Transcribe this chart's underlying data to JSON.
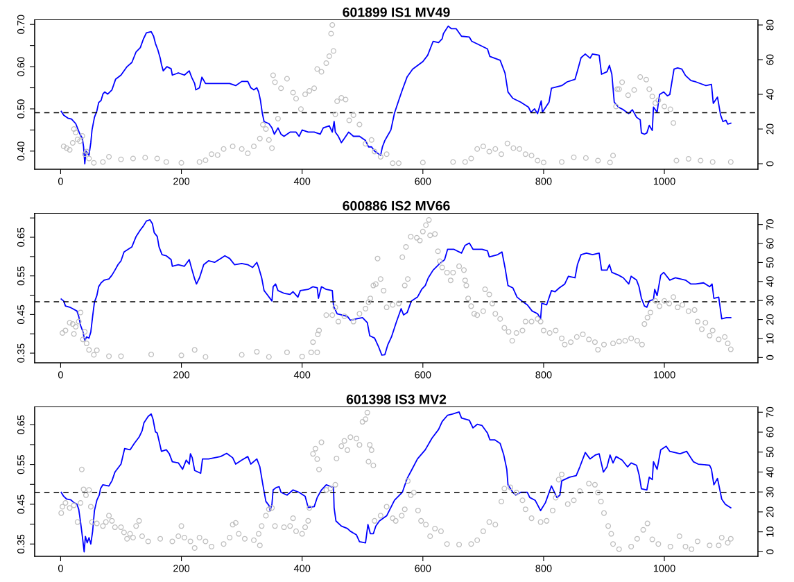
{
  "chart_data": [
    {
      "type": "line",
      "title": "601899 IS1 MV49",
      "grid": false,
      "xlim": [
        -43,
        1155
      ],
      "xticks": [
        0,
        200,
        400,
        600,
        800,
        1000
      ],
      "ylim": [
        0.357,
        0.711
      ],
      "yticks": [
        {
          "value": 0.4,
          "label": "0.40"
        },
        {
          "value": 0.45,
          "label": null
        },
        {
          "value": 0.5,
          "label": "0.50"
        },
        {
          "value": 0.55,
          "label": null
        },
        {
          "value": 0.6,
          "label": "0.60"
        },
        {
          "value": 0.65,
          "label": null
        },
        {
          "value": 0.7,
          "label": "0.70"
        }
      ],
      "y2lim": [
        -3.2,
        83
      ],
      "y2ticks": [
        0,
        20,
        40,
        60,
        80
      ],
      "ref_lines": [
        {
          "axis": "y",
          "value": 0.491,
          "color": "#000000",
          "line_style": "dashed"
        }
      ],
      "series": [
        {
          "type": "scatter",
          "axis": "y2",
          "marker": "circle",
          "color": "#bebebe",
          "x": [
            5,
            10,
            15,
            20,
            22,
            25,
            28,
            32,
            36,
            40,
            43,
            47,
            55,
            70,
            80,
            100,
            120,
            140,
            160,
            175,
            200,
            230,
            240,
            250,
            260,
            270,
            285,
            300,
            310,
            320,
            330,
            335,
            340,
            345,
            350,
            352,
            355,
            360,
            365,
            375,
            385,
            390,
            398,
            405,
            412,
            420,
            425,
            432,
            440,
            445,
            448,
            450,
            452,
            455,
            458,
            465,
            472,
            478,
            485,
            495,
            505,
            515,
            520,
            530,
            540,
            550,
            560,
            600,
            650,
            670,
            680,
            690,
            700,
            710,
            720,
            730,
            740,
            750,
            760,
            770,
            780,
            790,
            800,
            830,
            850,
            870,
            890,
            910,
            915,
            920,
            922,
            925,
            930,
            940,
            950,
            960,
            970,
            975,
            980,
            985,
            990,
            1000,
            1010,
            1015,
            1020,
            1040,
            1060,
            1080,
            1110
          ],
          "values": [
            10,
            9,
            8,
            12,
            20,
            18,
            14,
            13,
            16,
            5.5,
            7,
            3,
            0.5,
            1,
            4,
            2.5,
            3,
            3.5,
            3,
            1,
            0.5,
            1,
            2,
            5.5,
            5,
            8.5,
            10,
            8.5,
            6,
            10,
            14.5,
            22.5,
            20,
            13.7,
            9,
            51,
            47,
            26,
            43.5,
            49,
            41,
            37.5,
            31.5,
            40,
            42,
            43.5,
            54.6,
            53,
            58,
            62,
            75,
            80,
            65,
            28.5,
            36,
            38,
            37,
            25,
            28,
            22.6,
            11.5,
            13.7,
            7,
            4,
            5.5,
            0.3,
            0.3,
            0.7,
            1,
            1,
            3,
            8.5,
            10,
            7,
            8.5,
            5.5,
            11.7,
            9,
            8.5,
            5.5,
            4.7,
            1.8,
            0.7,
            1,
            3.7,
            3.3,
            1.8,
            0.7,
            4.7,
            33,
            43,
            43,
            47,
            39.5,
            42.5,
            50,
            48.5,
            43,
            38.8,
            35,
            36.6,
            33,
            31.4,
            23.5,
            1.8,
            2.8,
            1.8,
            1,
            1
          ]
        },
        {
          "color": "#0000ff",
          "line_style": "solid",
          "x": [
            1,
            5,
            12,
            18,
            25,
            32,
            36,
            38,
            40,
            42,
            47,
            50,
            52,
            56,
            60,
            63,
            67,
            70,
            73,
            78,
            85,
            91,
            100,
            110,
            118,
            125,
            132,
            137,
            142,
            150,
            154,
            157,
            161,
            165,
            167,
            170,
            176,
            183,
            185,
            195,
            205,
            213,
            217,
            222,
            224,
            230,
            234,
            240,
            260,
            280,
            290,
            300,
            310,
            315,
            320,
            325,
            328,
            331,
            334,
            337,
            345,
            350,
            354,
            360,
            365,
            370,
            380,
            390,
            395,
            400,
            410,
            420,
            430,
            435,
            445,
            450,
            453,
            455,
            460,
            465,
            470,
            477,
            485,
            495,
            505,
            510,
            515,
            520,
            525,
            530,
            533,
            537,
            541,
            547,
            553,
            560,
            566,
            574,
            583,
            600,
            608,
            617,
            626,
            632,
            634,
            642,
            647,
            655,
            664,
            677,
            681,
            690,
            707,
            711,
            728,
            736,
            741,
            749,
            762,
            775,
            779,
            785,
            790,
            796,
            798,
            809,
            813,
            830,
            839,
            852,
            856,
            862,
            869,
            877,
            881,
            892,
            896,
            905,
            909,
            913,
            917,
            924,
            932,
            941,
            947,
            954,
            960,
            962,
            967,
            971,
            975,
            980,
            982,
            988,
            992,
            999,
            1005,
            1009,
            1016,
            1022,
            1029,
            1035,
            1044,
            1052,
            1069,
            1078,
            1081,
            1088,
            1093,
            1097,
            1102,
            1105,
            1110
          ],
          "values": [
            0.494,
            0.485,
            0.478,
            0.476,
            0.465,
            0.44,
            0.43,
            0.41,
            0.37,
            0.4,
            0.39,
            0.42,
            0.45,
            0.48,
            0.495,
            0.515,
            0.52,
            0.535,
            0.54,
            0.535,
            0.545,
            0.57,
            0.58,
            0.6,
            0.61,
            0.635,
            0.645,
            0.665,
            0.68,
            0.683,
            0.672,
            0.655,
            0.64,
            0.62,
            0.605,
            0.59,
            0.6,
            0.595,
            0.58,
            0.585,
            0.58,
            0.59,
            0.575,
            0.56,
            0.545,
            0.55,
            0.575,
            0.56,
            0.56,
            0.56,
            0.555,
            0.565,
            0.565,
            0.55,
            0.545,
            0.55,
            0.54,
            0.52,
            0.49,
            0.47,
            0.465,
            0.455,
            0.44,
            0.455,
            0.44,
            0.435,
            0.445,
            0.445,
            0.435,
            0.45,
            0.445,
            0.445,
            0.44,
            0.455,
            0.46,
            0.445,
            0.47,
            0.445,
            0.435,
            0.42,
            0.43,
            0.445,
            0.435,
            0.435,
            0.425,
            0.41,
            0.41,
            0.4,
            0.395,
            0.39,
            0.41,
            0.425,
            0.435,
            0.45,
            0.49,
            0.52,
            0.545,
            0.576,
            0.594,
            0.612,
            0.627,
            0.66,
            0.657,
            0.666,
            0.678,
            0.696,
            0.69,
            0.69,
            0.672,
            0.67,
            0.66,
            0.654,
            0.642,
            0.624,
            0.615,
            0.585,
            0.54,
            0.525,
            0.516,
            0.504,
            0.492,
            0.5,
            0.489,
            0.519,
            0.492,
            0.516,
            0.549,
            0.555,
            0.564,
            0.57,
            0.59,
            0.621,
            0.63,
            0.62,
            0.63,
            0.627,
            0.582,
            0.588,
            0.603,
            0.582,
            0.516,
            0.504,
            0.498,
            0.489,
            0.498,
            0.48,
            0.474,
            0.443,
            0.44,
            0.443,
            0.461,
            0.449,
            0.504,
            0.492,
            0.534,
            0.54,
            0.531,
            0.534,
            0.594,
            0.597,
            0.594,
            0.579,
            0.567,
            0.564,
            0.555,
            0.558,
            0.513,
            0.528,
            0.486,
            0.47,
            0.473,
            0.464,
            0.466
          ]
        }
      ]
    },
    {
      "type": "line",
      "title": "600886 IS2 MV66",
      "grid": false,
      "xlim": [
        -43,
        1155
      ],
      "xticks": [
        0,
        200,
        400,
        600,
        800,
        1000
      ],
      "ylim": [
        0.325,
        0.712
      ],
      "yticks": [
        {
          "value": 0.35,
          "label": "0.35"
        },
        {
          "value": 0.4,
          "label": null
        },
        {
          "value": 0.45,
          "label": "0.45"
        },
        {
          "value": 0.5,
          "label": null
        },
        {
          "value": 0.55,
          "label": "0.55"
        },
        {
          "value": 0.6,
          "label": null
        },
        {
          "value": 0.65,
          "label": "0.65"
        },
        {
          "value": 0.7,
          "label": null
        }
      ],
      "y2lim": [
        -2.8,
        75.9
      ],
      "y2ticks": [
        0,
        10,
        20,
        30,
        40,
        50,
        60,
        70
      ],
      "ref_lines": [
        {
          "axis": "y",
          "value": 0.483,
          "color": "#000000",
          "line_style": "dashed"
        }
      ],
      "series": [
        {
          "type": "scatter",
          "axis": "y2",
          "marker": "circle",
          "color": "#bebebe",
          "x": [
            3,
            8,
            15,
            20,
            22,
            25,
            30,
            33,
            37,
            40,
            43,
            47,
            55,
            60,
            80,
            100,
            150,
            200,
            222,
            240,
            300,
            325,
            345,
            375,
            400,
            415,
            425,
            418,
            426,
            428,
            440,
            450,
            455,
            460,
            470,
            485,
            495,
            505,
            510,
            513,
            518,
            522,
            525,
            530,
            535,
            540,
            550,
            560,
            566,
            570,
            572,
            575,
            580,
            590,
            595,
            600,
            605,
            610,
            612,
            620,
            625,
            628,
            632,
            640,
            646,
            650,
            660,
            668,
            670,
            672,
            675,
            680,
            685,
            690,
            700,
            703,
            710,
            715,
            720,
            728,
            735,
            742,
            748,
            755,
            765,
            770,
            780,
            790,
            795,
            800,
            810,
            820,
            830,
            835,
            845,
            855,
            865,
            875,
            885,
            890,
            900,
            915,
            925,
            935,
            945,
            955,
            963,
            967,
            972,
            977,
            985,
            992,
            1000,
            1008,
            1015,
            1022,
            1030,
            1040,
            1050,
            1055,
            1062,
            1068,
            1075,
            1080,
            1090,
            1100,
            1105,
            1110
          ],
          "values": [
            12.9,
            14.2,
            18.3,
            17.6,
            12.4,
            16.2,
            18.9,
            23.7,
            9.5,
            13.5,
            7.4,
            4,
            1.4,
            3.8,
            0.7,
            0.7,
            1.6,
            1.1,
            4,
            0.3,
            1.4,
            3,
            0.3,
            2.7,
            0.5,
            2.7,
            2.7,
            8.1,
            12.2,
            14.2,
            22.3,
            22.3,
            26.4,
            18.9,
            21.7,
            18.9,
            23,
            25.7,
            29.1,
            31.1,
            37.9,
            38.6,
            52.1,
            41.3,
            35.2,
            26.4,
            27.7,
            28.4,
            52.8,
            37.9,
            58.2,
            41.3,
            63.6,
            63,
            61.6,
            66.3,
            69.7,
            72.4,
            64.3,
            65,
            55.9,
            50.7,
            47.4,
            44.7,
            40.6,
            44.7,
            48,
            46,
            40.6,
            37.9,
            31.1,
            27,
            23,
            22.3,
            24.4,
            35.9,
            33.2,
            28.4,
            23,
            20.3,
            15.6,
            13.5,
            8.8,
            12.9,
            14.2,
            18.9,
            18.9,
            20.3,
            18.9,
            14.2,
            12.9,
            14.2,
            10.1,
            6.8,
            8.1,
            10.8,
            12.2,
            9.5,
            8.1,
            4.1,
            6.8,
            7.4,
            8.4,
            8.8,
            10.1,
            8.8,
            6.8,
            17.6,
            21,
            23.7,
            29.8,
            27,
            29.8,
            28.4,
            31.8,
            26.4,
            27.7,
            24.4,
            25,
            18.9,
            14.9,
            18.3,
            11.5,
            14.2,
            9.5,
            10.8,
            7.4,
            4.3
          ]
        },
        {
          "color": "#0000ff",
          "line_style": "solid",
          "x": [
            1,
            5,
            8,
            15,
            20,
            27,
            30,
            33,
            37,
            40,
            43,
            47,
            50,
            53,
            56,
            60,
            63,
            67,
            72,
            80,
            85,
            90,
            95,
            100,
            105,
            112,
            118,
            125,
            132,
            137,
            142,
            148,
            152,
            155,
            160,
            163,
            168,
            175,
            183,
            185,
            195,
            205,
            213,
            217,
            222,
            225,
            230,
            237,
            245,
            255,
            265,
            272,
            280,
            288,
            300,
            310,
            318,
            325,
            328,
            333,
            337,
            342,
            350,
            352,
            356,
            360,
            370,
            380,
            385,
            393,
            397,
            410,
            418,
            425,
            427,
            432,
            440,
            450,
            452,
            458,
            465,
            475,
            480,
            490,
            500,
            508,
            512,
            520,
            527,
            532,
            537,
            542,
            548,
            556,
            564,
            568,
            574,
            581,
            591,
            598,
            604,
            609,
            617,
            626,
            636,
            641,
            651,
            664,
            670,
            677,
            683,
            698,
            707,
            710,
            724,
            731,
            736,
            741,
            749,
            756,
            764,
            773,
            781,
            790,
            795,
            797,
            805,
            813,
            819,
            826,
            835,
            841,
            852,
            856,
            862,
            871,
            881,
            892,
            896,
            905,
            909,
            913,
            924,
            932,
            941,
            945,
            954,
            958,
            962,
            967,
            971,
            975,
            982,
            984,
            988,
            994,
            999,
            1009,
            1018,
            1035,
            1044,
            1052,
            1065,
            1075,
            1079,
            1082,
            1090,
            1095,
            1103,
            1110
          ],
          "values": [
            0.49,
            0.485,
            0.472,
            0.469,
            0.465,
            0.459,
            0.445,
            0.422,
            0.405,
            0.382,
            0.392,
            0.389,
            0.405,
            0.445,
            0.482,
            0.499,
            0.522,
            0.532,
            0.539,
            0.542,
            0.552,
            0.565,
            0.579,
            0.589,
            0.612,
            0.619,
            0.625,
            0.652,
            0.669,
            0.679,
            0.692,
            0.695,
            0.685,
            0.662,
            0.652,
            0.625,
            0.605,
            0.602,
            0.592,
            0.575,
            0.579,
            0.575,
            0.592,
            0.569,
            0.542,
            0.529,
            0.545,
            0.579,
            0.589,
            0.585,
            0.595,
            0.602,
            0.595,
            0.579,
            0.582,
            0.579,
            0.572,
            0.585,
            0.572,
            0.545,
            0.512,
            0.502,
            0.485,
            0.522,
            0.529,
            0.512,
            0.505,
            0.502,
            0.509,
            0.495,
            0.512,
            0.515,
            0.522,
            0.519,
            0.492,
            0.522,
            0.515,
            0.512,
            0.472,
            0.452,
            0.449,
            0.445,
            0.435,
            0.439,
            0.442,
            0.429,
            0.395,
            0.389,
            0.365,
            0.345,
            0.346,
            0.372,
            0.392,
            0.43,
            0.465,
            0.449,
            0.455,
            0.485,
            0.495,
            0.515,
            0.525,
            0.545,
            0.565,
            0.579,
            0.592,
            0.619,
            0.619,
            0.609,
            0.629,
            0.635,
            0.619,
            0.619,
            0.615,
            0.599,
            0.605,
            0.612,
            0.572,
            0.525,
            0.519,
            0.495,
            0.485,
            0.475,
            0.459,
            0.452,
            0.439,
            0.479,
            0.475,
            0.512,
            0.509,
            0.519,
            0.529,
            0.549,
            0.545,
            0.579,
            0.605,
            0.609,
            0.605,
            0.609,
            0.565,
            0.565,
            0.579,
            0.559,
            0.552,
            0.545,
            0.529,
            0.549,
            0.539,
            0.522,
            0.492,
            0.472,
            0.469,
            0.485,
            0.489,
            0.515,
            0.499,
            0.552,
            0.559,
            0.539,
            0.545,
            0.539,
            0.529,
            0.529,
            0.532,
            0.522,
            0.529,
            0.492,
            0.495,
            0.439,
            0.442,
            0.442
          ]
        }
      ]
    },
    {
      "type": "line",
      "title": "601398 IS3 MV2",
      "grid": false,
      "xlim": [
        -43,
        1155
      ],
      "xticks": [
        0,
        200,
        400,
        600,
        800,
        1000
      ],
      "ylim": [
        0.319,
        0.695
      ],
      "yticks": [
        {
          "value": 0.35,
          "label": "0.35"
        },
        {
          "value": 0.4,
          "label": null
        },
        {
          "value": 0.45,
          "label": "0.45"
        },
        {
          "value": 0.5,
          "label": null
        },
        {
          "value": 0.55,
          "label": "0.55"
        },
        {
          "value": 0.6,
          "label": null
        },
        {
          "value": 0.65,
          "label": "0.65"
        }
      ],
      "y2lim": [
        -2.3,
        72.7
      ],
      "y2ticks": [
        0,
        10,
        20,
        30,
        40,
        50,
        60,
        70
      ],
      "ref_lines": [
        {
          "axis": "y",
          "value": 0.48,
          "color": "#000000",
          "line_style": "dashed"
        }
      ],
      "series": [
        {
          "type": "scatter",
          "axis": "y2",
          "marker": "circle",
          "color": "#bebebe",
          "x": [
            1,
            3,
            8,
            15,
            22,
            28,
            33,
            35,
            38,
            42,
            47,
            50,
            52,
            60,
            70,
            75,
            80,
            85,
            90,
            100,
            105,
            110,
            115,
            120,
            125,
            130,
            135,
            145,
            165,
            185,
            195,
            200,
            205,
            215,
            222,
            230,
            240,
            250,
            270,
            280,
            285,
            290,
            295,
            305,
            320,
            328,
            330,
            333,
            340,
            345,
            350,
            355,
            370,
            380,
            385,
            390,
            400,
            405,
            410,
            412,
            418,
            422,
            425,
            428,
            432,
            440,
            447,
            455,
            457,
            465,
            470,
            475,
            480,
            490,
            495,
            500,
            505,
            508,
            510,
            512,
            515,
            518,
            520,
            530,
            540,
            550,
            555,
            565,
            570,
            575,
            580,
            585,
            592,
            597,
            605,
            612,
            620,
            630,
            640,
            660,
            680,
            690,
            700,
            710,
            720,
            730,
            735,
            745,
            755,
            765,
            770,
            780,
            795,
            805,
            815,
            820,
            825,
            830,
            840,
            850,
            860,
            875,
            885,
            890,
            895,
            900,
            907,
            912,
            915,
            925,
            945,
            955,
            965,
            972,
            980,
            990,
            1010,
            1025,
            1035,
            1045,
            1055,
            1075,
            1090,
            1095,
            1105,
            1110
          ],
          "values": [
            19.4,
            22.6,
            24.5,
            22,
            23.3,
            14.9,
            24.5,
            41.3,
            31.3,
            28.4,
            31,
            22.6,
            14.9,
            14.2,
            12.9,
            14.9,
            18.1,
            15.5,
            12.3,
            12.3,
            9.7,
            6.5,
            9,
            7.1,
            12.9,
            15.5,
            7.8,
            5.2,
            6.5,
            5.2,
            7.8,
            12.9,
            7.1,
            5.2,
            1.9,
            7.1,
            5.2,
            2.6,
            3.9,
            7.1,
            13.6,
            14.5,
            9,
            6.5,
            5.8,
            9,
            3.2,
            12.9,
            18.1,
            21.3,
            22,
            12.9,
            12.3,
            12.9,
            16.8,
            10.3,
            9,
            12.3,
            15.5,
            22,
            49.1,
            51.7,
            46.5,
            41.3,
            54.9,
            31,
            31.7,
            33.6,
            46.8,
            53,
            55.6,
            51,
            57.5,
            56.8,
            53.6,
            65.2,
            66.5,
            69.8,
            45.2,
            53.6,
            51,
            43.3,
            15.5,
            18.1,
            22.6,
            16.8,
            15.5,
            18.1,
            21.3,
            35.5,
            28.4,
            29.7,
            20.7,
            15.5,
            13.6,
            7.8,
            11.6,
            10.3,
            3.9,
            3.6,
            3.9,
            5.8,
            10.3,
            14.9,
            13.6,
            25.2,
            31.7,
            32.3,
            29.7,
            25.8,
            21.3,
            16.8,
            14.9,
            15.5,
            20.7,
            27.1,
            36.2,
            38.8,
            23.9,
            25.8,
            30.4,
            34.2,
            33.6,
            29.7,
            25.2,
            19.4,
            12.9,
            9,
            3.9,
            1.3,
            2.6,
            6.5,
            11,
            14.2,
            6.2,
            3.9,
            2.6,
            7.8,
            2.6,
            1.3,
            5.2,
            3.2,
            3.2,
            7.1,
            4.5,
            6.5
          ]
        },
        {
          "color": "#0000ff",
          "line_style": "solid",
          "x": [
            1,
            5,
            10,
            17,
            22,
            27,
            30,
            33,
            36,
            39,
            41,
            44,
            47,
            50,
            53,
            56,
            60,
            64,
            66,
            70,
            80,
            85,
            90,
            100,
            106,
            115,
            122,
            130,
            135,
            138,
            145,
            150,
            153,
            157,
            160,
            164,
            167,
            175,
            180,
            185,
            195,
            202,
            208,
            213,
            215,
            218,
            222,
            232,
            235,
            245,
            255,
            265,
            275,
            285,
            290,
            300,
            310,
            315,
            325,
            330,
            335,
            340,
            345,
            347,
            350,
            352,
            357,
            362,
            365,
            375,
            385,
            395,
            405,
            410,
            420,
            425,
            432,
            440,
            452,
            453,
            456,
            465,
            475,
            480,
            490,
            495,
            505,
            509,
            513,
            518,
            522,
            528,
            540,
            553,
            566,
            574,
            581,
            591,
            604,
            615,
            626,
            632,
            641,
            649,
            660,
            664,
            677,
            683,
            690,
            698,
            707,
            711,
            719,
            728,
            734,
            739,
            741,
            749,
            754,
            762,
            773,
            777,
            786,
            795,
            803,
            813,
            822,
            827,
            830,
            843,
            854,
            860,
            869,
            877,
            886,
            892,
            899,
            905,
            910,
            915,
            920,
            930,
            939,
            945,
            954,
            958,
            962,
            971,
            975,
            980,
            982,
            988,
            994,
            1003,
            1009,
            1026,
            1037,
            1048,
            1056,
            1075,
            1078,
            1082,
            1088,
            1095,
            1101,
            1110
          ],
          "values": [
            0.48,
            0.47,
            0.463,
            0.461,
            0.454,
            0.45,
            0.437,
            0.405,
            0.369,
            0.33,
            0.369,
            0.353,
            0.366,
            0.35,
            0.382,
            0.434,
            0.46,
            0.473,
            0.489,
            0.499,
            0.496,
            0.509,
            0.531,
            0.551,
            0.59,
            0.587,
            0.603,
            0.619,
            0.635,
            0.655,
            0.671,
            0.677,
            0.664,
            0.632,
            0.629,
            0.603,
            0.583,
            0.587,
            0.577,
            0.557,
            0.554,
            0.538,
            0.561,
            0.551,
            0.577,
            0.567,
            0.535,
            0.528,
            0.564,
            0.564,
            0.567,
            0.57,
            0.578,
            0.567,
            0.551,
            0.561,
            0.57,
            0.551,
            0.564,
            0.544,
            0.499,
            0.457,
            0.447,
            0.434,
            0.45,
            0.486,
            0.492,
            0.494,
            0.48,
            0.473,
            0.486,
            0.48,
            0.47,
            0.442,
            0.444,
            0.467,
            0.486,
            0.499,
            0.492,
            0.441,
            0.408,
            0.395,
            0.389,
            0.382,
            0.373,
            0.356,
            0.353,
            0.399,
            0.376,
            0.376,
            0.395,
            0.408,
            0.421,
            0.46,
            0.48,
            0.515,
            0.535,
            0.564,
            0.587,
            0.616,
            0.638,
            0.658,
            0.674,
            0.677,
            0.682,
            0.667,
            0.661,
            0.642,
            0.651,
            0.648,
            0.629,
            0.612,
            0.612,
            0.603,
            0.574,
            0.538,
            0.499,
            0.48,
            0.473,
            0.48,
            0.48,
            0.467,
            0.46,
            0.434,
            0.454,
            0.496,
            0.467,
            0.473,
            0.509,
            0.518,
            0.522,
            0.544,
            0.58,
            0.564,
            0.574,
            0.577,
            0.531,
            0.544,
            0.574,
            0.554,
            0.57,
            0.561,
            0.544,
            0.554,
            0.548,
            0.525,
            0.489,
            0.486,
            0.518,
            0.512,
            0.557,
            0.538,
            0.587,
            0.596,
            0.583,
            0.577,
            0.583,
            0.557,
            0.551,
            0.548,
            0.538,
            0.499,
            0.515,
            0.463,
            0.45,
            0.441
          ]
        }
      ]
    }
  ]
}
